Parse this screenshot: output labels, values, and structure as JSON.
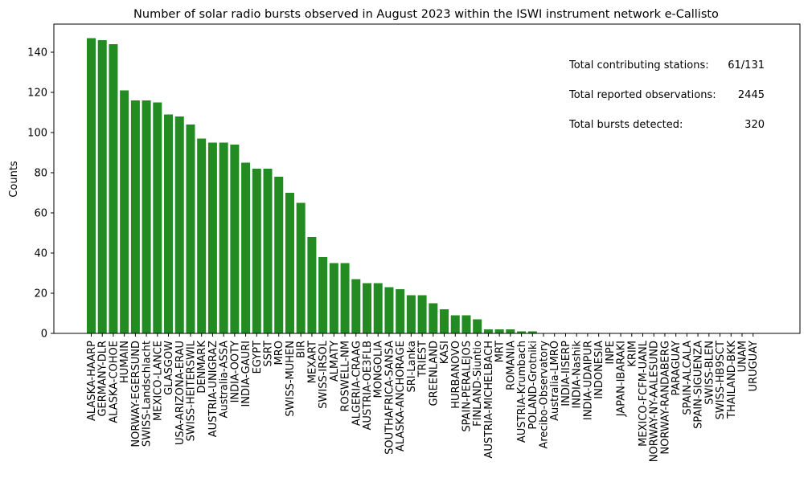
{
  "chart_data": {
    "type": "bar",
    "title": "Number of solar radio bursts observed in August 2023 within the ISWI instrument network e-Callisto",
    "xlabel": "",
    "ylabel": "Counts",
    "ylim": [
      0,
      154
    ],
    "yticks": [
      0,
      20,
      40,
      60,
      80,
      100,
      120,
      140
    ],
    "bar_color": "#228b22",
    "grid": false,
    "categories": [
      "ALASKA-HAARP",
      "GERMANY-DLR",
      "ALASKA-COHOE",
      "HUMAIN",
      "NORWAY-EGERSUND",
      "SWISS-Landschlacht",
      "MEXICO-LANCE",
      "GLASGOW",
      "USA-ARIZONA-ERAU",
      "SWISS-HEITERSWIL",
      "DENMARK",
      "AUSTRIA-UNIGRAZ",
      "Australia-ASSA",
      "INDIA-OOTY",
      "INDIA-GAURI",
      "EGYPT",
      "SSRT",
      "MRO",
      "SWISS-MUHEN",
      "BIR",
      "MEXART",
      "SWISS-IRSOL",
      "ALMATY",
      "ROSWELL-NM",
      "ALGERIA-CRAAG",
      "AUSTRIA-OE3FLB",
      "MONGOLIA",
      "SOUTHAFRICA-SANSA",
      "ALASKA-ANCHORAGE",
      "SRI-Lanka",
      "TRIEST",
      "GREENLAND",
      "KASI",
      "HURBANOVO",
      "SPAIN-PERALEJOS",
      "FINLAND-Siuntio",
      "AUSTRIA-MICHELBACH",
      "MRT",
      "ROMANIA",
      "AUSTRIA-Krumbach",
      "POLAND-Grotniki",
      "Arecibo-Observatory",
      "Australia-LMRO",
      "INDIA-IISERP",
      "INDIA-Nashik",
      "INDIA-UDAIPUR",
      "INDONESIA",
      "INPE",
      "JAPAN-IBARAKI",
      "KRIM",
      "MEXICO-FCFM-UANL",
      "NORWAY-NY-AALESUND",
      "NORWAY-RANDABERG",
      "PARAGUAY",
      "SPAIN-ALCALA",
      "SPAIN-SIGUENZA",
      "SWISS-BLEN",
      "SWISS-HB9SCT",
      "THAILAND-BKK",
      "UNAM",
      "URUGUAY"
    ],
    "values": [
      147,
      146,
      144,
      121,
      116,
      116,
      115,
      109,
      108,
      104,
      97,
      95,
      95,
      94,
      85,
      82,
      82,
      78,
      70,
      65,
      48,
      38,
      35,
      35,
      27,
      25,
      25,
      23,
      22,
      19,
      19,
      15,
      12,
      9,
      9,
      7,
      2,
      2,
      2,
      1,
      1,
      0,
      0,
      0,
      0,
      0,
      0,
      0,
      0,
      0,
      0,
      0,
      0,
      0,
      0,
      0,
      0,
      0,
      0,
      0,
      0
    ],
    "annotations": [
      {
        "label": "Total contributing stations:",
        "value": "61/131"
      },
      {
        "label": "Total reported observations:",
        "value": "2445"
      },
      {
        "label": "Total bursts detected:",
        "value": "320"
      }
    ]
  }
}
